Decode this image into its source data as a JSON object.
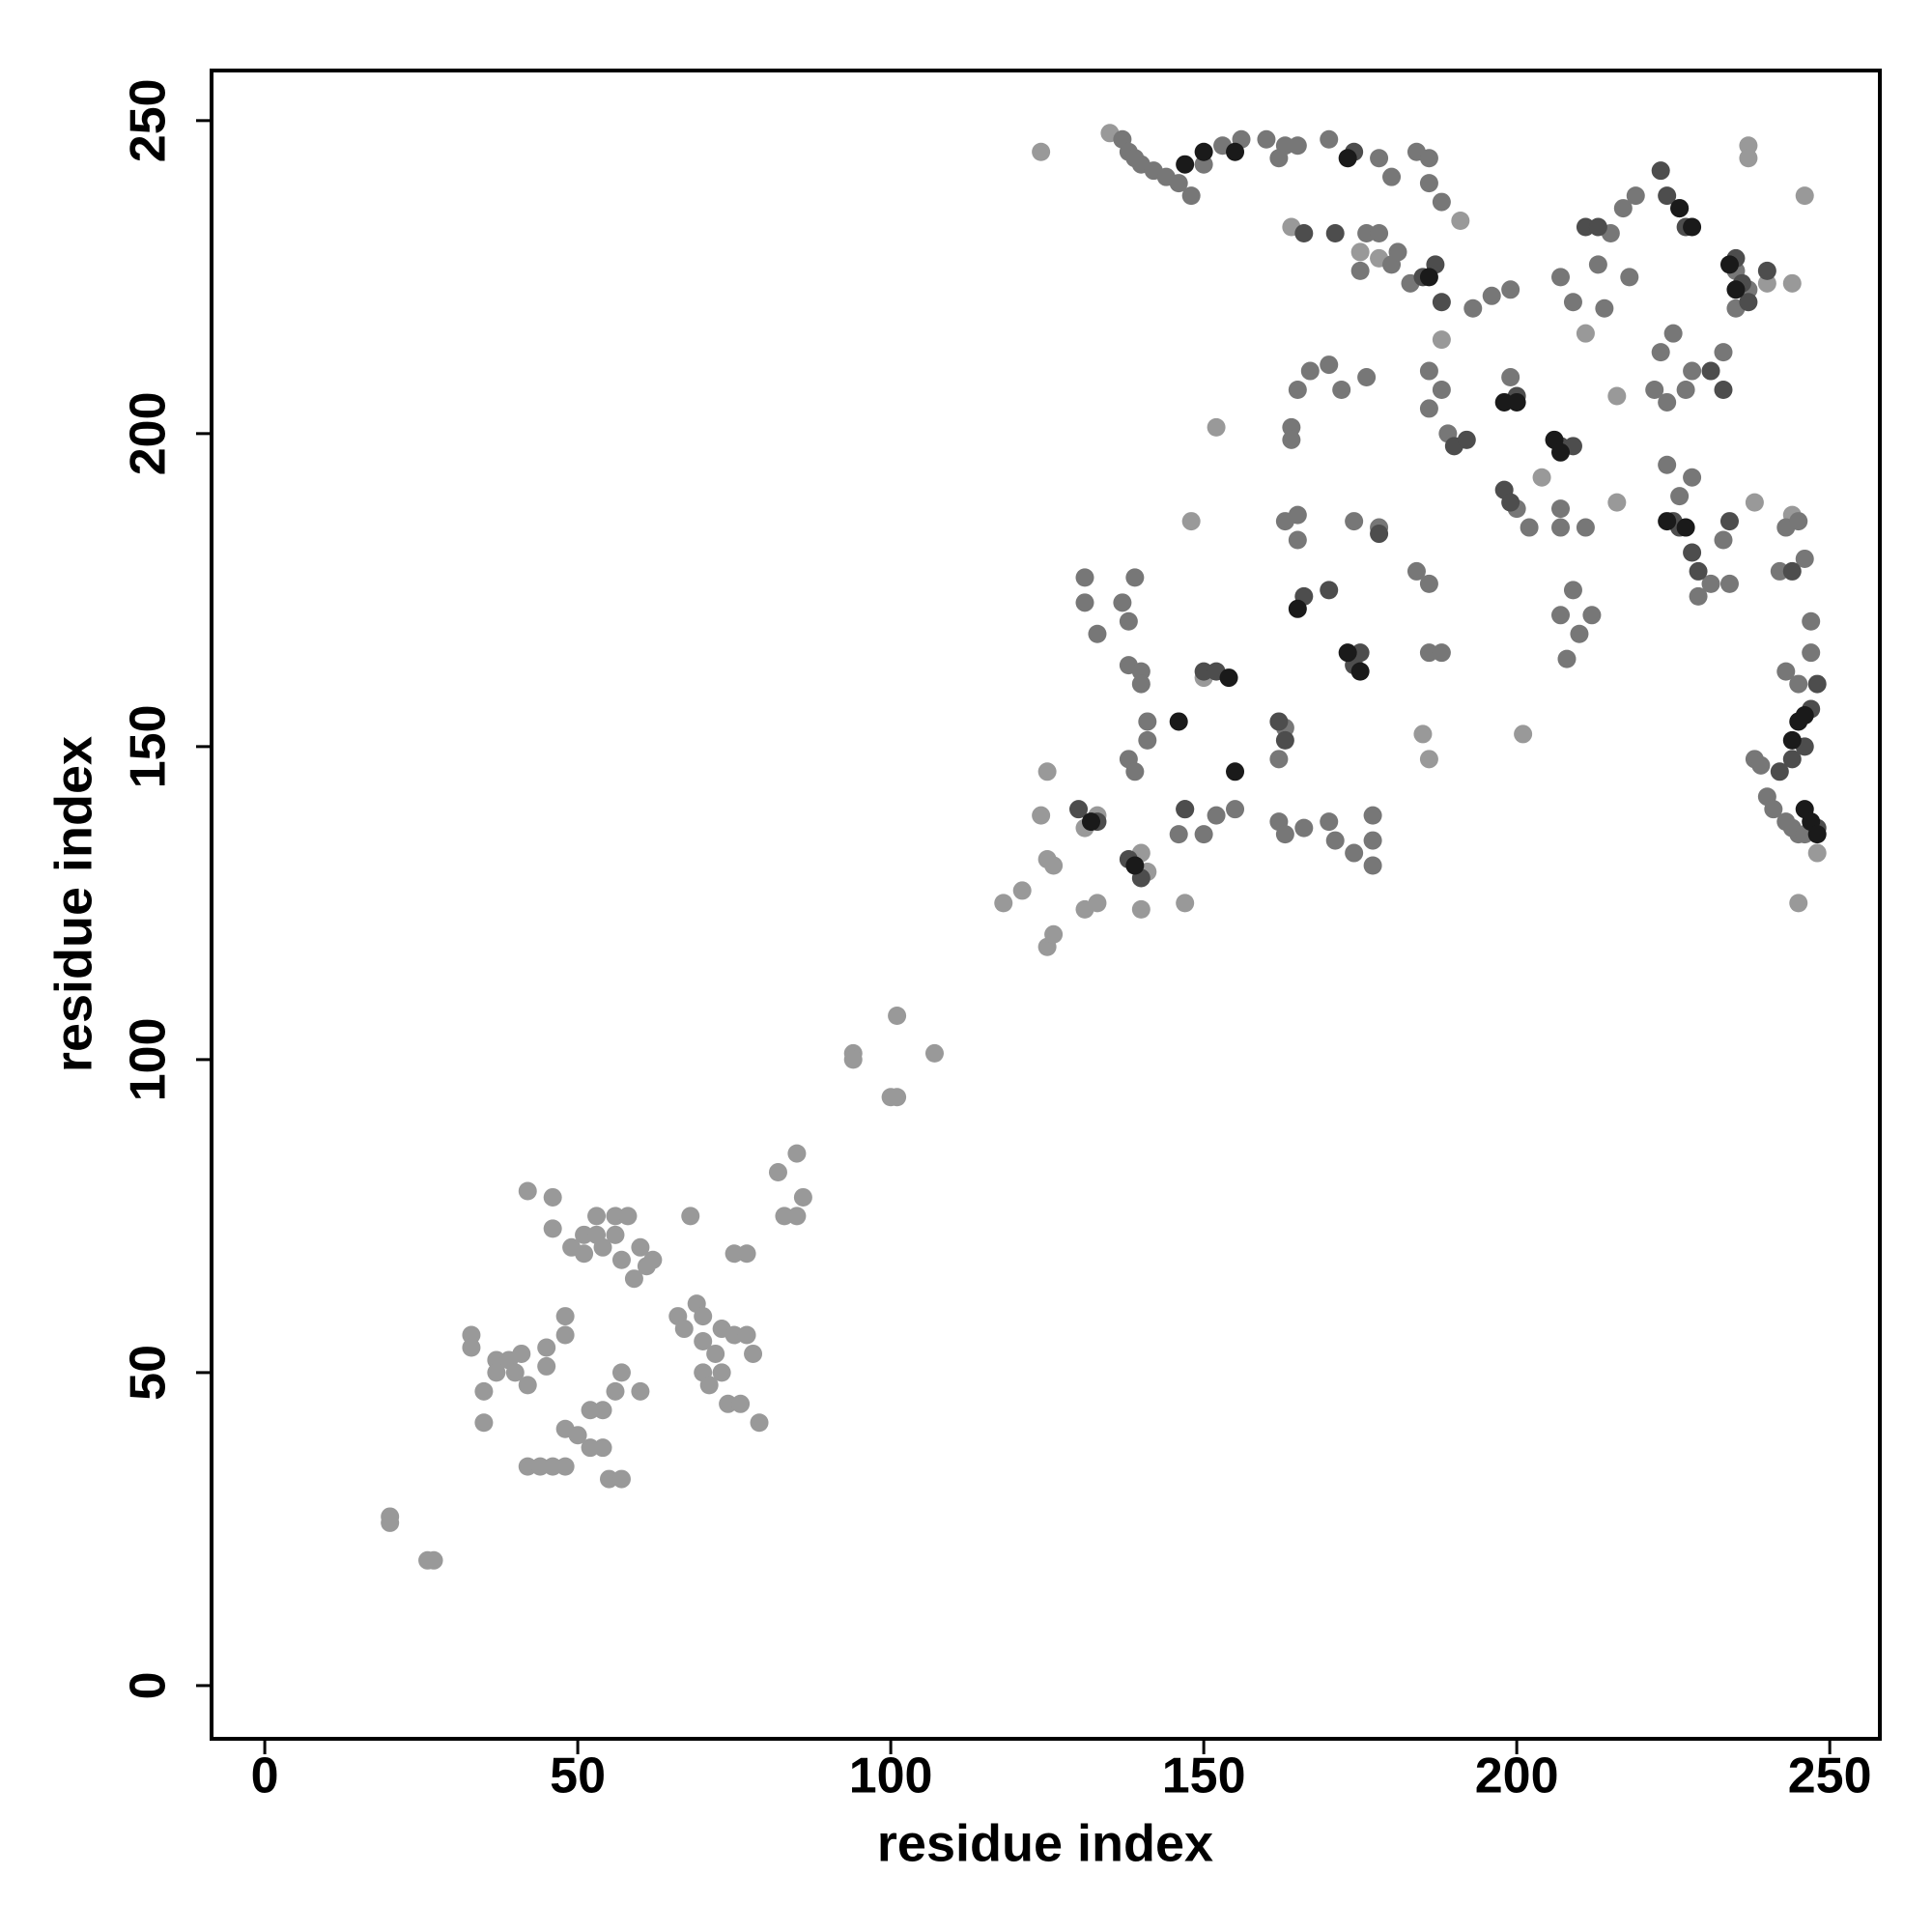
{
  "chart_data": {
    "type": "scatter",
    "xlabel": "residue index",
    "ylabel": "residue index",
    "xlim": [
      -8.5,
      258
    ],
    "ylim": [
      -8.5,
      258
    ],
    "xticks": [
      0,
      50,
      100,
      150,
      200,
      250
    ],
    "yticks": [
      0,
      50,
      100,
      150,
      200,
      250
    ],
    "series": [
      {
        "color": "#999999",
        "x": [
          20,
          20,
          26,
          27,
          33,
          33,
          35,
          35,
          37,
          37,
          39,
          40,
          41,
          42,
          42,
          42,
          44,
          45,
          45,
          46,
          46,
          46,
          48,
          48,
          48,
          48,
          49,
          50,
          51,
          51,
          52,
          52,
          53,
          53,
          54,
          54,
          54,
          55,
          56,
          56,
          56,
          57,
          57,
          57,
          58,
          59,
          60,
          60,
          61,
          62,
          66,
          67,
          68,
          69,
          70,
          70,
          70,
          71,
          72,
          73,
          73,
          74,
          75,
          75,
          76,
          77,
          77,
          78,
          79,
          82,
          83,
          85,
          85,
          86,
          94,
          94,
          100,
          101,
          101,
          107,
          118,
          121,
          125,
          125,
          126,
          124,
          125,
          126,
          124,
          133,
          131,
          131,
          133,
          135,
          140,
          140,
          141,
          147,
          148,
          150,
          152,
          164,
          175,
          178,
          185,
          186,
          188,
          191,
          201,
          204,
          211,
          216,
          216,
          237,
          237,
          238,
          245,
          248,
          244,
          246,
          240,
          244
        ],
        "y": [
          27,
          26,
          20,
          20,
          56,
          54,
          47,
          42,
          52,
          50,
          52,
          50,
          53,
          48,
          79,
          35,
          35,
          54,
          51,
          35,
          78,
          73,
          35,
          59,
          56,
          41,
          70,
          40,
          72,
          69,
          44,
          38,
          72,
          75,
          70,
          38,
          44,
          33,
          75,
          72,
          47,
          33,
          68,
          50,
          75,
          65,
          70,
          47,
          67,
          68,
          59,
          57,
          75,
          61,
          55,
          59,
          50,
          48,
          53,
          57,
          50,
          45,
          56,
          69,
          45,
          56,
          69,
          53,
          42,
          82,
          75,
          85,
          75,
          78,
          101,
          100,
          94,
          94,
          107,
          101,
          125,
          127,
          118,
          146,
          120,
          139,
          132,
          131,
          245,
          139,
          137,
          124,
          125,
          248,
          124,
          133,
          130,
          125,
          186,
          161,
          201,
          233,
          229,
          228,
          152,
          148,
          215,
          234,
          152,
          193,
          216,
          189,
          206,
          246,
          244,
          189,
          125,
          133,
          187,
          238,
          224,
          224
        ]
      },
      {
        "color": "#777777",
        "x": [
          137,
          138,
          139,
          140,
          142,
          144,
          146,
          148,
          150,
          153,
          156,
          160,
          163,
          165,
          162,
          170,
          178,
          180,
          184,
          186,
          188,
          186,
          131,
          131,
          133,
          137,
          138,
          139,
          138,
          140,
          138,
          139,
          141,
          141,
          140,
          146,
          147,
          150,
          152,
          155,
          162,
          163,
          166,
          162,
          163,
          165,
          165,
          163,
          164,
          164,
          165,
          167,
          170,
          172,
          176,
          170,
          171,
          174,
          177,
          177,
          177,
          174,
          178,
          175,
          176,
          178,
          180,
          181,
          183,
          186,
          188,
          186,
          184,
          186,
          186,
          188,
          189,
          193,
          196,
          199,
          199,
          200,
          202,
          208,
          207,
          209,
          210,
          212,
          211,
          207,
          207,
          207,
          209,
          213,
          214,
          215,
          217,
          218,
          219,
          223,
          225,
          222,
          224,
          224,
          226,
          228,
          227,
          228,
          229,
          231,
          233,
          234,
          233,
          235,
          235,
          237,
          238,
          239,
          240,
          241,
          243,
          244,
          245,
          246,
          243,
          245,
          247,
          247,
          246,
          243,
          245,
          242
        ],
        "y": [
          247,
          245,
          244,
          243,
          242,
          241,
          240,
          238,
          243,
          246,
          247,
          247,
          246,
          246,
          244,
          247,
          244,
          241,
          245,
          244,
          237,
          240,
          177,
          173,
          168,
          173,
          170,
          177,
          163,
          162,
          148,
          146,
          151,
          154,
          160,
          136,
          140,
          136,
          139,
          140,
          138,
          136,
          137,
          148,
          153,
          183,
          187,
          186,
          201,
          199,
          207,
          210,
          211,
          207,
          209,
          138,
          135,
          133,
          135,
          139,
          131,
          186,
          185,
          226,
          232,
          232,
          227,
          229,
          224,
          210,
          207,
          204,
          178,
          176,
          165,
          165,
          200,
          220,
          222,
          209,
          223,
          188,
          185,
          164,
          171,
          175,
          168,
          171,
          185,
          185,
          188,
          225,
          221,
          227,
          220,
          232,
          236,
          225,
          238,
          213,
          216,
          207,
          205,
          195,
          190,
          193,
          207,
          210,
          174,
          176,
          183,
          176,
          213,
          220,
          226,
          223,
          148,
          147,
          142,
          140,
          138,
          137,
          136,
          136,
          162,
          160,
          165,
          170,
          180,
          185,
          186,
          178
        ]
      },
      {
        "color": "#4d4d4d",
        "x": [
          130,
          133,
          138,
          140,
          147,
          150,
          152,
          162,
          163,
          166,
          170,
          174,
          175,
          178,
          185,
          187,
          188,
          190,
          192,
          198,
          199,
          200,
          207,
          209,
          211,
          213,
          223,
          224,
          226,
          227,
          225,
          226,
          228,
          229,
          231,
          233,
          234,
          235,
          236,
          237,
          242,
          244,
          246,
          247,
          248,
          248,
          244,
          240,
          166,
          171,
          174
        ],
        "y": [
          140,
          138,
          132,
          129,
          140,
          162,
          162,
          154,
          151,
          174,
          175,
          163,
          165,
          184,
          225,
          227,
          221,
          198,
          199,
          191,
          189,
          206,
          198,
          198,
          233,
          233,
          242,
          238,
          236,
          233,
          186,
          185,
          181,
          178,
          210,
          207,
          186,
          228,
          224,
          221,
          146,
          148,
          150,
          156,
          160,
          137,
          178,
          226,
          232,
          232,
          245
        ]
      },
      {
        "color": "#1a1a1a",
        "x": [
          132,
          139,
          146,
          154,
          155,
          165,
          173,
          175,
          186,
          198,
          200,
          206,
          207,
          226,
          228,
          224,
          227,
          234,
          235,
          244,
          245,
          246,
          246,
          247,
          248,
          147,
          150,
          155,
          173
        ],
        "y": [
          138,
          131,
          154,
          161,
          146,
          172,
          165,
          162,
          225,
          205,
          205,
          199,
          197,
          236,
          233,
          186,
          185,
          227,
          223,
          151,
          154,
          155,
          140,
          138,
          136,
          243,
          245,
          245,
          244
        ]
      }
    ]
  }
}
